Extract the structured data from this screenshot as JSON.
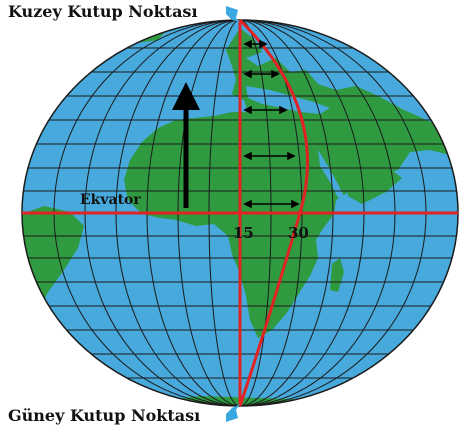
{
  "labels": {
    "north_pole": "Kuzey Kutup Noktası",
    "south_pole": "Güney Kutup Noktası",
    "equator": "Ekvator",
    "meridian_15": "15",
    "meridian_30": "30"
  },
  "colors": {
    "ocean": "#47a9dc",
    "land": "#2f9a3f",
    "grid": "#1b1b1b",
    "meridian_highlight": "#e02424",
    "pointer": "#3aa8e0",
    "arrow": "#000000",
    "text": "#111111"
  }
}
